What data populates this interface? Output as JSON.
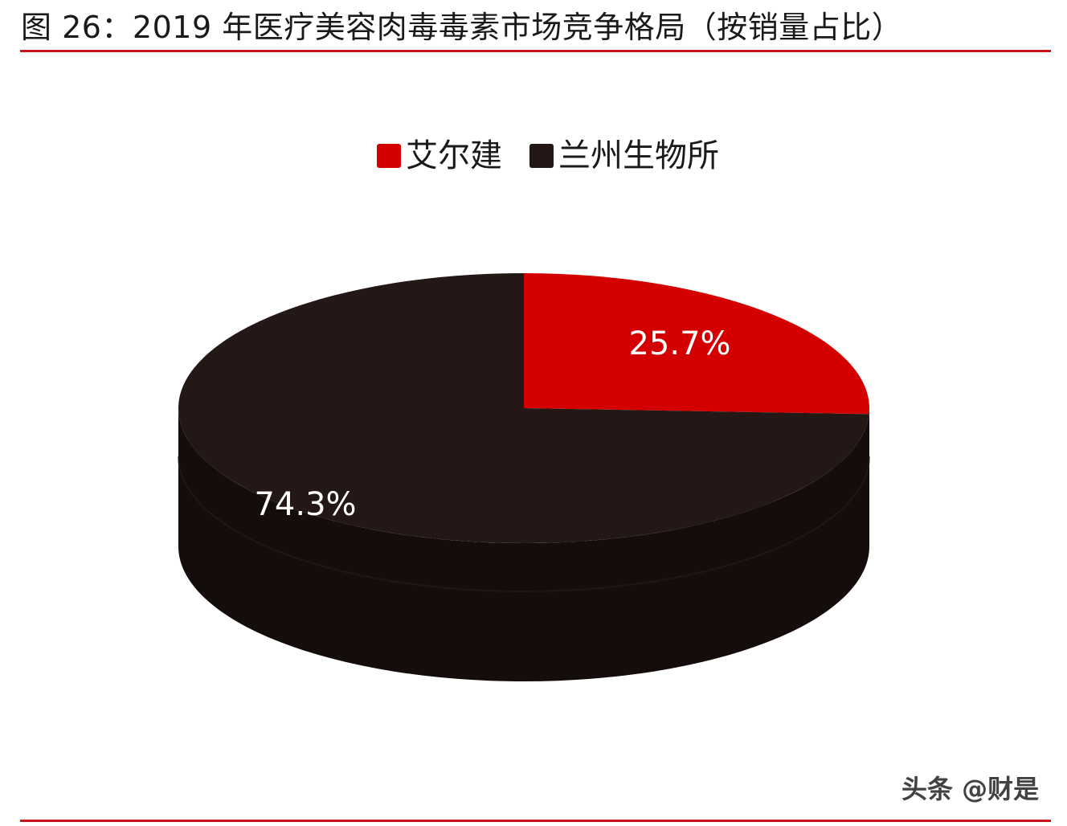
{
  "figure": {
    "title": "图 26：2019 年医疗美容肉毒毒素市场竞争格局（按销量占比）"
  },
  "chart_data": {
    "type": "pie",
    "title": "",
    "style": "3d",
    "legend_position": "top",
    "slices": [
      {
        "label": "艾尔建",
        "value": 25.7,
        "display": "25.7%",
        "color": "#d40000"
      },
      {
        "label": "兰州生物所",
        "value": 74.3,
        "display": "74.3%",
        "color": "#231816"
      }
    ]
  },
  "watermark": "头条 @财是",
  "colors": {
    "accent_rule": "#c8141b",
    "side_dark": "#150d0b"
  }
}
